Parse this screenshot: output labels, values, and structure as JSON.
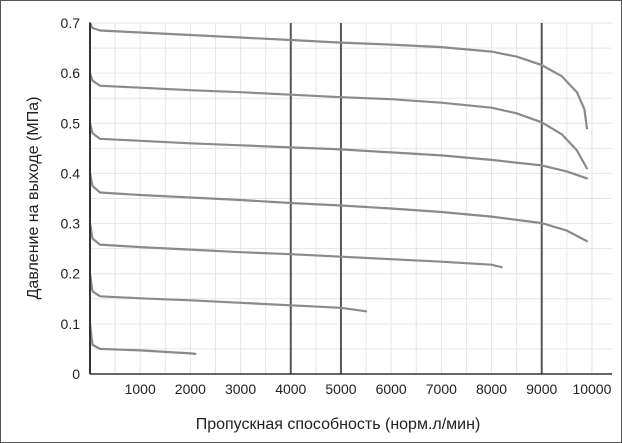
{
  "chart_data": {
    "type": "line",
    "title": "",
    "xlabel": "Пропускная способность (норм.л/мин)",
    "ylabel": "Давление на выходе (МПа)",
    "xlim": [
      0,
      10400
    ],
    "ylim": [
      0,
      0.7
    ],
    "x_ticks": [
      1000,
      2000,
      3000,
      4000,
      5000,
      6000,
      7000,
      8000,
      9000,
      10000
    ],
    "y_ticks": [
      0,
      0.1,
      0.2,
      0.3,
      0.4,
      0.5,
      0.6,
      0.7
    ],
    "x_tick_labels": [
      "1000",
      "2000",
      "3000",
      "4000",
      "5000",
      "6000",
      "7000",
      "8000",
      "9000",
      "10000"
    ],
    "y_tick_labels": [
      "0",
      "0.1",
      "0.2",
      "0.3",
      "0.4",
      "0.5",
      "0.6",
      "0.7"
    ],
    "major_x_gridlines": [
      4000,
      5000,
      9000
    ],
    "grid": true,
    "line_color": "#8a8a8a",
    "major_grid_color": "#555555",
    "minor_grid_color": "#e6e6e6",
    "series": [
      {
        "x": [
          0,
          50,
          200,
          1000,
          2000,
          3000,
          4000,
          5000,
          6000,
          7000,
          8000,
          8500,
          9000,
          9400,
          9700,
          9850,
          9900
        ],
        "y": [
          0.7,
          0.69,
          0.685,
          0.681,
          0.676,
          0.671,
          0.666,
          0.661,
          0.657,
          0.652,
          0.643,
          0.633,
          0.616,
          0.594,
          0.562,
          0.528,
          0.49
        ]
      },
      {
        "x": [
          0,
          50,
          200,
          1000,
          2000,
          3000,
          4000,
          5000,
          6000,
          7000,
          8000,
          8500,
          9000,
          9400,
          9700,
          9900
        ],
        "y": [
          0.6,
          0.585,
          0.575,
          0.571,
          0.566,
          0.562,
          0.557,
          0.552,
          0.548,
          0.541,
          0.531,
          0.52,
          0.502,
          0.478,
          0.446,
          0.41
        ]
      },
      {
        "x": [
          0,
          50,
          200,
          1000,
          2000,
          3000,
          4000,
          5000,
          6000,
          7000,
          8000,
          9000,
          9500,
          9900
        ],
        "y": [
          0.5,
          0.48,
          0.469,
          0.465,
          0.46,
          0.456,
          0.452,
          0.448,
          0.442,
          0.436,
          0.427,
          0.416,
          0.404,
          0.39
        ]
      },
      {
        "x": [
          0,
          50,
          200,
          1000,
          2000,
          3000,
          4000,
          5000,
          6000,
          7000,
          8000,
          9000,
          9500,
          9900
        ],
        "y": [
          0.4,
          0.375,
          0.362,
          0.357,
          0.352,
          0.347,
          0.341,
          0.336,
          0.33,
          0.323,
          0.314,
          0.301,
          0.286,
          0.265
        ]
      },
      {
        "x": [
          0,
          50,
          200,
          1000,
          2000,
          3000,
          4000,
          5000,
          6000,
          7000,
          8000,
          8200
        ],
        "y": [
          0.3,
          0.27,
          0.258,
          0.253,
          0.248,
          0.243,
          0.239,
          0.234,
          0.229,
          0.224,
          0.218,
          0.213
        ]
      },
      {
        "x": [
          0,
          50,
          200,
          1000,
          2000,
          3000,
          4000,
          5000,
          5500
        ],
        "y": [
          0.2,
          0.165,
          0.155,
          0.151,
          0.147,
          0.142,
          0.137,
          0.132,
          0.125
        ]
      },
      {
        "x": [
          0,
          50,
          200,
          1000,
          2000,
          2100
        ],
        "y": [
          0.1,
          0.058,
          0.05,
          0.047,
          0.041,
          0.04
        ]
      }
    ]
  }
}
